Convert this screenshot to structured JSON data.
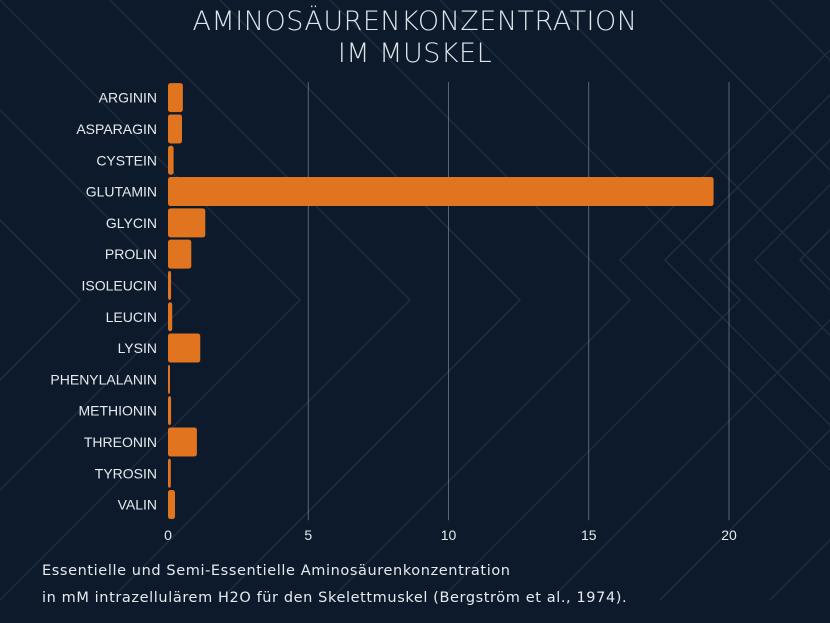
{
  "title_line1": "AMINOSÄURENKONZENTRATION",
  "title_line2": "IM  MUSKEL",
  "caption_line1": "Essentielle und Semi-Essentielle Aminosäurenkonzentration",
  "caption_line2": "in mM intrazellulärem H2O für den Skelettmuskel (Bergström et al., 1974).",
  "colors": {
    "background": "#0d1a2b",
    "bar": "#e1741f",
    "text": "#e6e9ee",
    "grid": "#8c96a3"
  },
  "chart_data": {
    "type": "bar",
    "orientation": "horizontal",
    "categories": [
      "ARGININ",
      "ASPARAGIN",
      "CYSTEIN",
      "GLUTAMIN",
      "GLYCIN",
      "PROLIN",
      "ISOLEUCIN",
      "LEUCIN",
      "LYSIN",
      "PHENYLALANIN",
      "METHIONIN",
      "THREONIN",
      "TYROSIN",
      "VALIN"
    ],
    "values": [
      0.53,
      0.5,
      0.2,
      19.45,
      1.33,
      0.83,
      0.11,
      0.15,
      1.15,
      0.07,
      0.11,
      1.03,
      0.1,
      0.25
    ],
    "xlim": [
      0,
      20
    ],
    "xticks": [
      0,
      5,
      10,
      15,
      20
    ],
    "grid": true
  }
}
